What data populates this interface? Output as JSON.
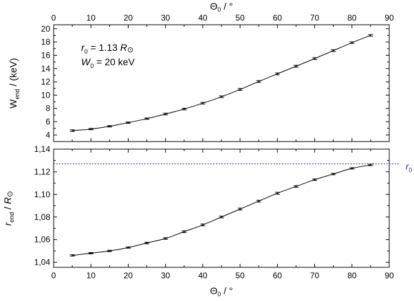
{
  "chart_data": [
    {
      "type": "line",
      "panel": "top",
      "xlabel": "Θ0 / °",
      "ylabel": "Wend / (keV)",
      "xlim": [
        0,
        90
      ],
      "ylim": [
        3.0,
        20.6
      ],
      "x_ticks": [
        0,
        10,
        20,
        30,
        40,
        50,
        60,
        70,
        80,
        90
      ],
      "y_ticks": [
        4,
        6,
        8,
        10,
        12,
        14,
        16,
        18,
        20
      ],
      "y_tick_labels": [
        "4",
        "6",
        "8",
        "10",
        "12",
        "14",
        "16",
        "18",
        "20"
      ],
      "top_x_ticks": [
        0,
        10,
        20,
        30,
        40,
        50,
        60,
        70,
        80,
        90
      ],
      "annotations": [
        {
          "var": "r",
          "sub": "0",
          "text": " = 1.13 R",
          "symbol": "⊙"
        },
        {
          "var": "W",
          "sub": "0",
          "text": " = 20 keV"
        }
      ],
      "series": [
        {
          "x": [
            5,
            10,
            15,
            20,
            25,
            30,
            35,
            40,
            45,
            50,
            55,
            60,
            65,
            70,
            75,
            80,
            85
          ],
          "y": [
            4.65,
            4.88,
            5.3,
            5.85,
            6.45,
            7.15,
            7.9,
            8.78,
            9.75,
            10.85,
            12.05,
            13.2,
            14.35,
            15.5,
            16.7,
            17.9,
            19.0
          ],
          "error": [
            0.12,
            0.1,
            0.1,
            0.1,
            0.1,
            0.12,
            0.12,
            0.12,
            0.12,
            0.14,
            0.14,
            0.14,
            0.14,
            0.14,
            0.14,
            0.12,
            0.12
          ]
        }
      ],
      "grid": false
    },
    {
      "type": "line",
      "panel": "bottom",
      "xlabel": "Θ0 / °",
      "ylabel": "rend / R⊙",
      "xlim": [
        0,
        90
      ],
      "ylim": [
        1.0355,
        1.14
      ],
      "x_ticks": [
        0,
        10,
        20,
        30,
        40,
        50,
        60,
        70,
        80,
        90
      ],
      "y_ticks": [
        1.04,
        1.06,
        1.08,
        1.1,
        1.12,
        1.14
      ],
      "y_tick_labels": [
        "1,04",
        "1,06",
        "1,08",
        "1,10",
        "1,12",
        "1,14"
      ],
      "reference_line": {
        "y": 1.127,
        "label": "r0",
        "color": "#1a1acc",
        "style": "dotted"
      },
      "series": [
        {
          "x": [
            5,
            10,
            15,
            20,
            25,
            30,
            35,
            40,
            45,
            50,
            55,
            60,
            65,
            70,
            75,
            80,
            85
          ],
          "y": [
            1.046,
            1.048,
            1.05,
            1.053,
            1.057,
            1.061,
            1.067,
            1.073,
            1.08,
            1.087,
            1.094,
            1.101,
            1.107,
            1.113,
            1.118,
            1.123,
            1.126
          ],
          "error": [
            0.0006,
            0.0006,
            0.0006,
            0.0006,
            0.0007,
            0.0007,
            0.0008,
            0.0008,
            0.0008,
            0.0008,
            0.0008,
            0.0008,
            0.0007,
            0.0007,
            0.0006,
            0.0006,
            0.0006
          ]
        }
      ],
      "grid": false
    }
  ]
}
